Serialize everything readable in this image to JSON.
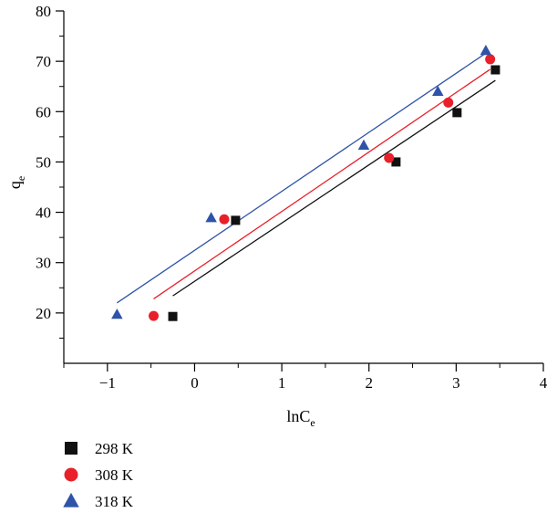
{
  "chart_data": {
    "type": "scatter",
    "xlabel": {
      "main": "lnC",
      "sub": "e"
    },
    "ylabel": {
      "main": "q",
      "sub": "e"
    },
    "xlim": [
      -1.5,
      4
    ],
    "ylim": [
      10,
      80
    ],
    "x_ticks": [
      -1,
      0,
      1,
      2,
      3,
      4
    ],
    "x_tick_labels": [
      "−1",
      "0",
      "1",
      "2",
      "3",
      "4"
    ],
    "y_ticks": [
      20,
      30,
      40,
      50,
      60,
      70,
      80
    ],
    "y_tick_labels": [
      "20",
      "30",
      "40",
      "50",
      "60",
      "70",
      "80"
    ],
    "x_minor_step": 0.5,
    "y_minor_step": 5,
    "legend_position": "bottom-left, below plot",
    "series": [
      {
        "name": "298 K",
        "marker": "square",
        "color": "#111111",
        "points": [
          [
            -0.25,
            19.3
          ],
          [
            0.47,
            38.4
          ],
          [
            2.31,
            50.0
          ],
          [
            3.01,
            59.8
          ],
          [
            3.45,
            68.3
          ]
        ],
        "fit_line": [
          [
            -0.25,
            23.4
          ],
          [
            3.45,
            66.2
          ]
        ]
      },
      {
        "name": "308 K",
        "marker": "circle",
        "color": "#e8202a",
        "points": [
          [
            -0.47,
            19.4
          ],
          [
            0.34,
            38.6
          ],
          [
            2.23,
            50.8
          ],
          [
            2.91,
            61.8
          ],
          [
            3.39,
            70.4
          ]
        ],
        "fit_line": [
          [
            -0.47,
            22.8
          ],
          [
            3.39,
            68.4
          ]
        ]
      },
      {
        "name": "318 K",
        "marker": "triangle",
        "color": "#2e53a8",
        "points": [
          [
            -0.89,
            19.7
          ],
          [
            0.19,
            38.9
          ],
          [
            1.94,
            53.3
          ],
          [
            2.79,
            64.0
          ],
          [
            3.34,
            72.1
          ]
        ],
        "fit_line": [
          [
            -0.89,
            22.0
          ],
          [
            3.34,
            71.6
          ]
        ]
      }
    ]
  }
}
